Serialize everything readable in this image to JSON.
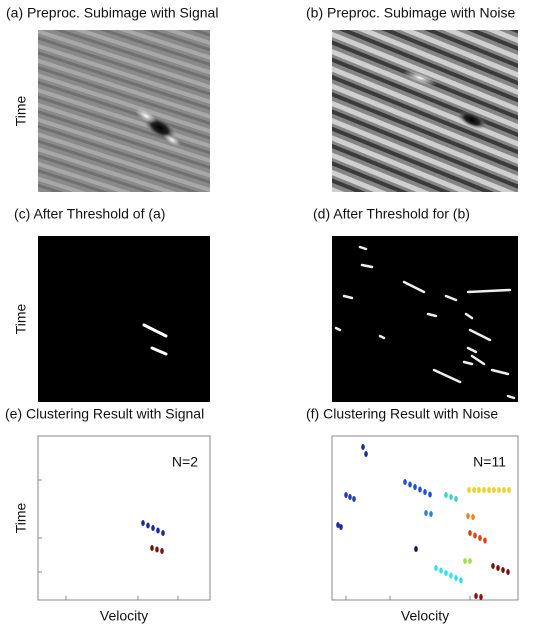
{
  "panels": [
    {
      "title": "(a) Preproc. Subimage with Signal",
      "y_label": "Time"
    },
    {
      "title": "(b) Preproc. Subimage with Noise"
    },
    {
      "title": "(c) After Threshold of (a)",
      "y_label": "Time"
    },
    {
      "title": "(d) After Threshold for (b)"
    },
    {
      "title": "(e) Clustering Result with Signal",
      "y_label": "Time",
      "x_label": "Velocity",
      "annotation": "N=2"
    },
    {
      "title": "(f) Clustering Result with Noise",
      "x_label": "Velocity",
      "annotation": "N=11"
    }
  ]
}
